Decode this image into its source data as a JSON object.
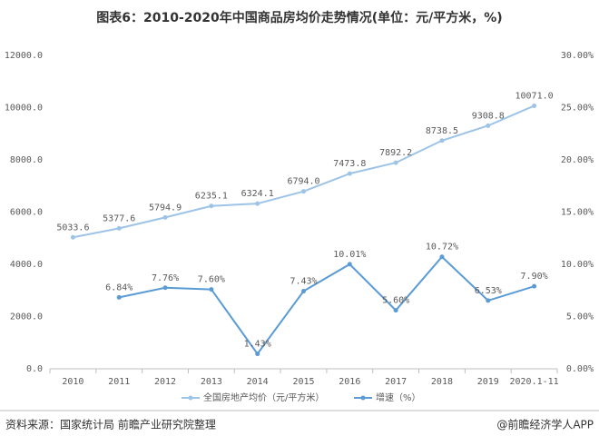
{
  "chart_data": {
    "type": "line",
    "title": "图表6：2010-2020年中国商品房均价走势情况(单位：元/平方米，%)",
    "categories": [
      "2010",
      "2011",
      "2012",
      "2013",
      "2014",
      "2015",
      "2016",
      "2017",
      "2018",
      "2019",
      "2020.1-11"
    ],
    "series": [
      {
        "name": "全国房地产均价（元/平方米）",
        "color": "#9dc3e6",
        "values": [
          5033.6,
          5377.6,
          5794.9,
          6235.1,
          6324.1,
          6794.0,
          7473.8,
          7892.2,
          8738.5,
          9308.8,
          10071.0
        ],
        "value_labels": [
          "5033.6",
          "5377.6",
          "5794.9",
          "6235.1",
          "6324.1",
          "6794.0",
          "7473.8",
          "7892.2",
          "8738.5",
          "9308.8",
          "10071.0"
        ]
      },
      {
        "name": "增速（%）",
        "color": "#5b9bd5",
        "axis": "y2",
        "values": [
          null,
          6.84,
          7.76,
          7.6,
          1.43,
          7.43,
          10.01,
          5.6,
          10.72,
          6.53,
          7.9
        ],
        "value_labels": [
          null,
          "6.84%",
          "7.76%",
          "7.60%",
          "1.43%",
          "7.43%",
          "10.01%",
          "5.60%",
          "10.72%",
          "6.53%",
          "7.90%"
        ]
      }
    ],
    "ylim": [
      0,
      12000
    ],
    "yticks": [
      {
        "value": 0,
        "label": "0.0"
      },
      {
        "value": 2000,
        "label": "2000.0"
      },
      {
        "value": 4000,
        "label": "4000.0"
      },
      {
        "value": 6000,
        "label": "6000.0"
      },
      {
        "value": 8000,
        "label": "8000.0"
      },
      {
        "value": 10000,
        "label": "10000.0"
      },
      {
        "value": 12000,
        "label": "12000.0"
      }
    ],
    "y2lim": [
      0,
      30
    ],
    "y2ticks": [
      {
        "value": 0,
        "label": "0.00%"
      },
      {
        "value": 5,
        "label": "5.00%"
      },
      {
        "value": 10,
        "label": "10.00%"
      },
      {
        "value": 15,
        "label": "15.00%"
      },
      {
        "value": 20,
        "label": "20.00%"
      },
      {
        "value": 25,
        "label": "25.00%"
      },
      {
        "value": 30,
        "label": "30.00%"
      }
    ],
    "grid": false,
    "legend": "bottom",
    "source": "资料来源：国家统计局 前瞻产业研究院整理",
    "credit": "@前瞻经济学人APP"
  }
}
